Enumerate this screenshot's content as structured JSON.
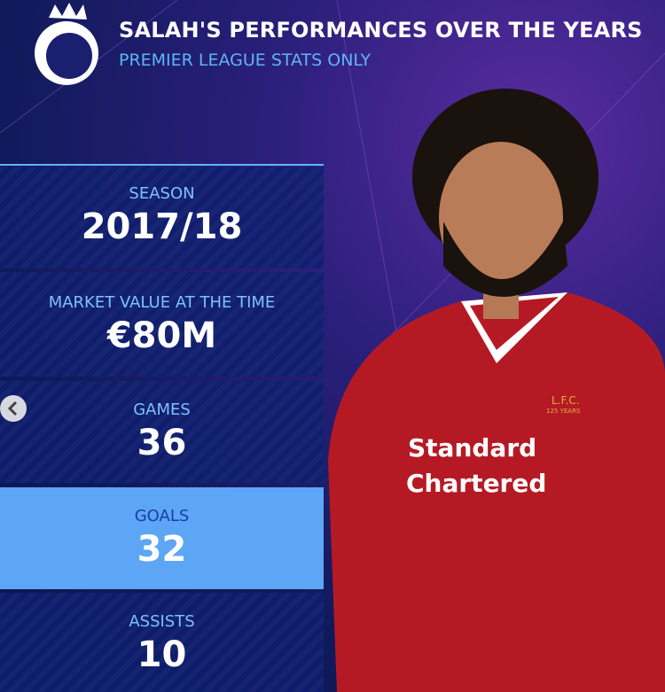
{
  "header": {
    "title": "SALAH'S PERFORMANCES OVER THE YEARS",
    "subtitle": "PREMIER LEAGUE STATS ONLY"
  },
  "stats": [
    {
      "label": "SEASON",
      "value": "2017/18"
    },
    {
      "label": "MARKET VALUE AT THE TIME",
      "value": "€80M"
    },
    {
      "label": "GAMES",
      "value": "36"
    },
    {
      "label": "GOALS",
      "value": "32"
    },
    {
      "label": "ASSISTS",
      "value": "10"
    }
  ],
  "photo": {
    "sponsor_line1": "Standard",
    "sponsor_line2": "Chartered",
    "crest": "L.F.C.",
    "crest_sub": "125 YEARS"
  }
}
